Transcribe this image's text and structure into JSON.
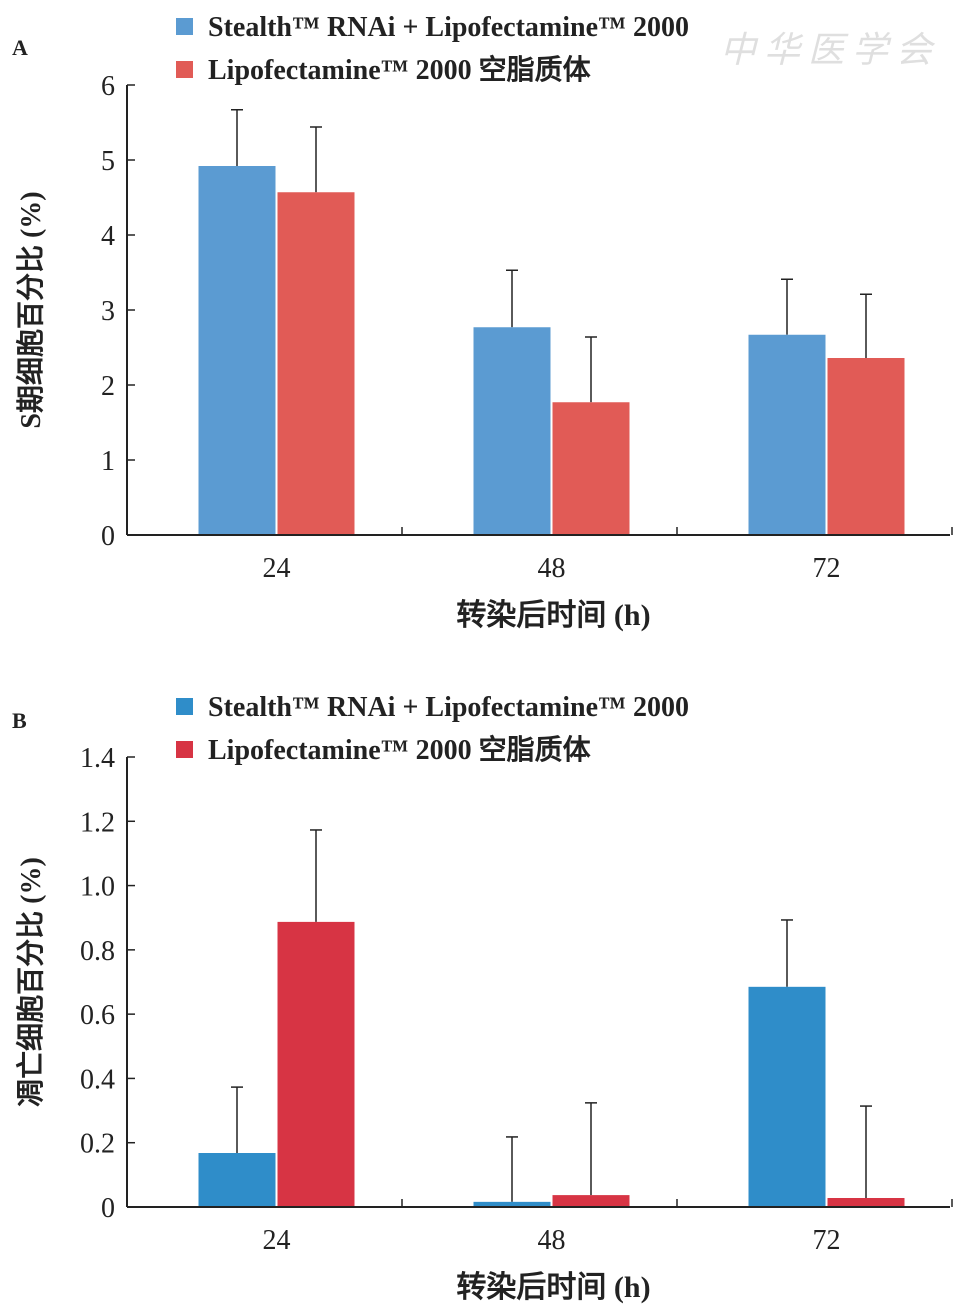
{
  "watermark": "中华医学会",
  "colors": {
    "A_blue": "#5b9bd2",
    "A_red": "#e15b56",
    "B_blue": "#2f8dc9",
    "B_red": "#d73444",
    "axis": "#222222"
  },
  "chart_data": [
    {
      "type": "bar",
      "panel_label": "A",
      "categories": [
        "24",
        "48",
        "72"
      ],
      "xlabel": "转染后时间 (h)",
      "ylabel": "S期细胞百分比 (%)",
      "ylim": [
        0,
        6
      ],
      "yticks": [
        "0",
        "1",
        "2",
        "3",
        "4",
        "5",
        "6"
      ],
      "ytick_values": [
        0,
        1,
        2,
        3,
        4,
        5,
        6
      ],
      "legend_position": "top",
      "error_bars": true,
      "series": [
        {
          "name": "Stealth™ RNAi + Lipofectamine™ 2000",
          "color": "#5b9bd2",
          "values": [
            4.92,
            2.77,
            2.67
          ],
          "error_upper": [
            5.67,
            3.53,
            3.41
          ]
        },
        {
          "name": "Lipofectamine™ 2000 空脂质体",
          "color": "#e15b56",
          "values": [
            4.57,
            1.77,
            2.36
          ],
          "error_upper": [
            5.44,
            2.64,
            3.21
          ]
        }
      ]
    },
    {
      "type": "bar",
      "panel_label": "B",
      "categories": [
        "24",
        "48",
        "72"
      ],
      "xlabel": "转染后时间 (h)",
      "ylabel": "凋亡细胞百分比 (%)",
      "ylim": [
        0,
        1.4
      ],
      "yticks": [
        "0",
        "0.2",
        "0.4",
        "0.6",
        "0.8",
        "1.0",
        "1.2",
        "1.4"
      ],
      "ytick_values": [
        0,
        0.2,
        0.4,
        0.6,
        0.8,
        1.0,
        1.2,
        1.4
      ],
      "legend_position": "top",
      "error_bars": true,
      "series": [
        {
          "name": "Stealth™ RNAi + Lipofectamine™ 2000",
          "color": "#2f8dc9",
          "values": [
            0.168,
            0.016,
            0.685
          ],
          "error_upper": [
            0.373,
            0.218,
            0.893
          ]
        },
        {
          "name": "Lipofectamine™ 2000 空脂质体",
          "color": "#d73444",
          "values": [
            0.887,
            0.037,
            0.028
          ],
          "error_upper": [
            1.173,
            0.324,
            0.314
          ]
        }
      ]
    }
  ]
}
